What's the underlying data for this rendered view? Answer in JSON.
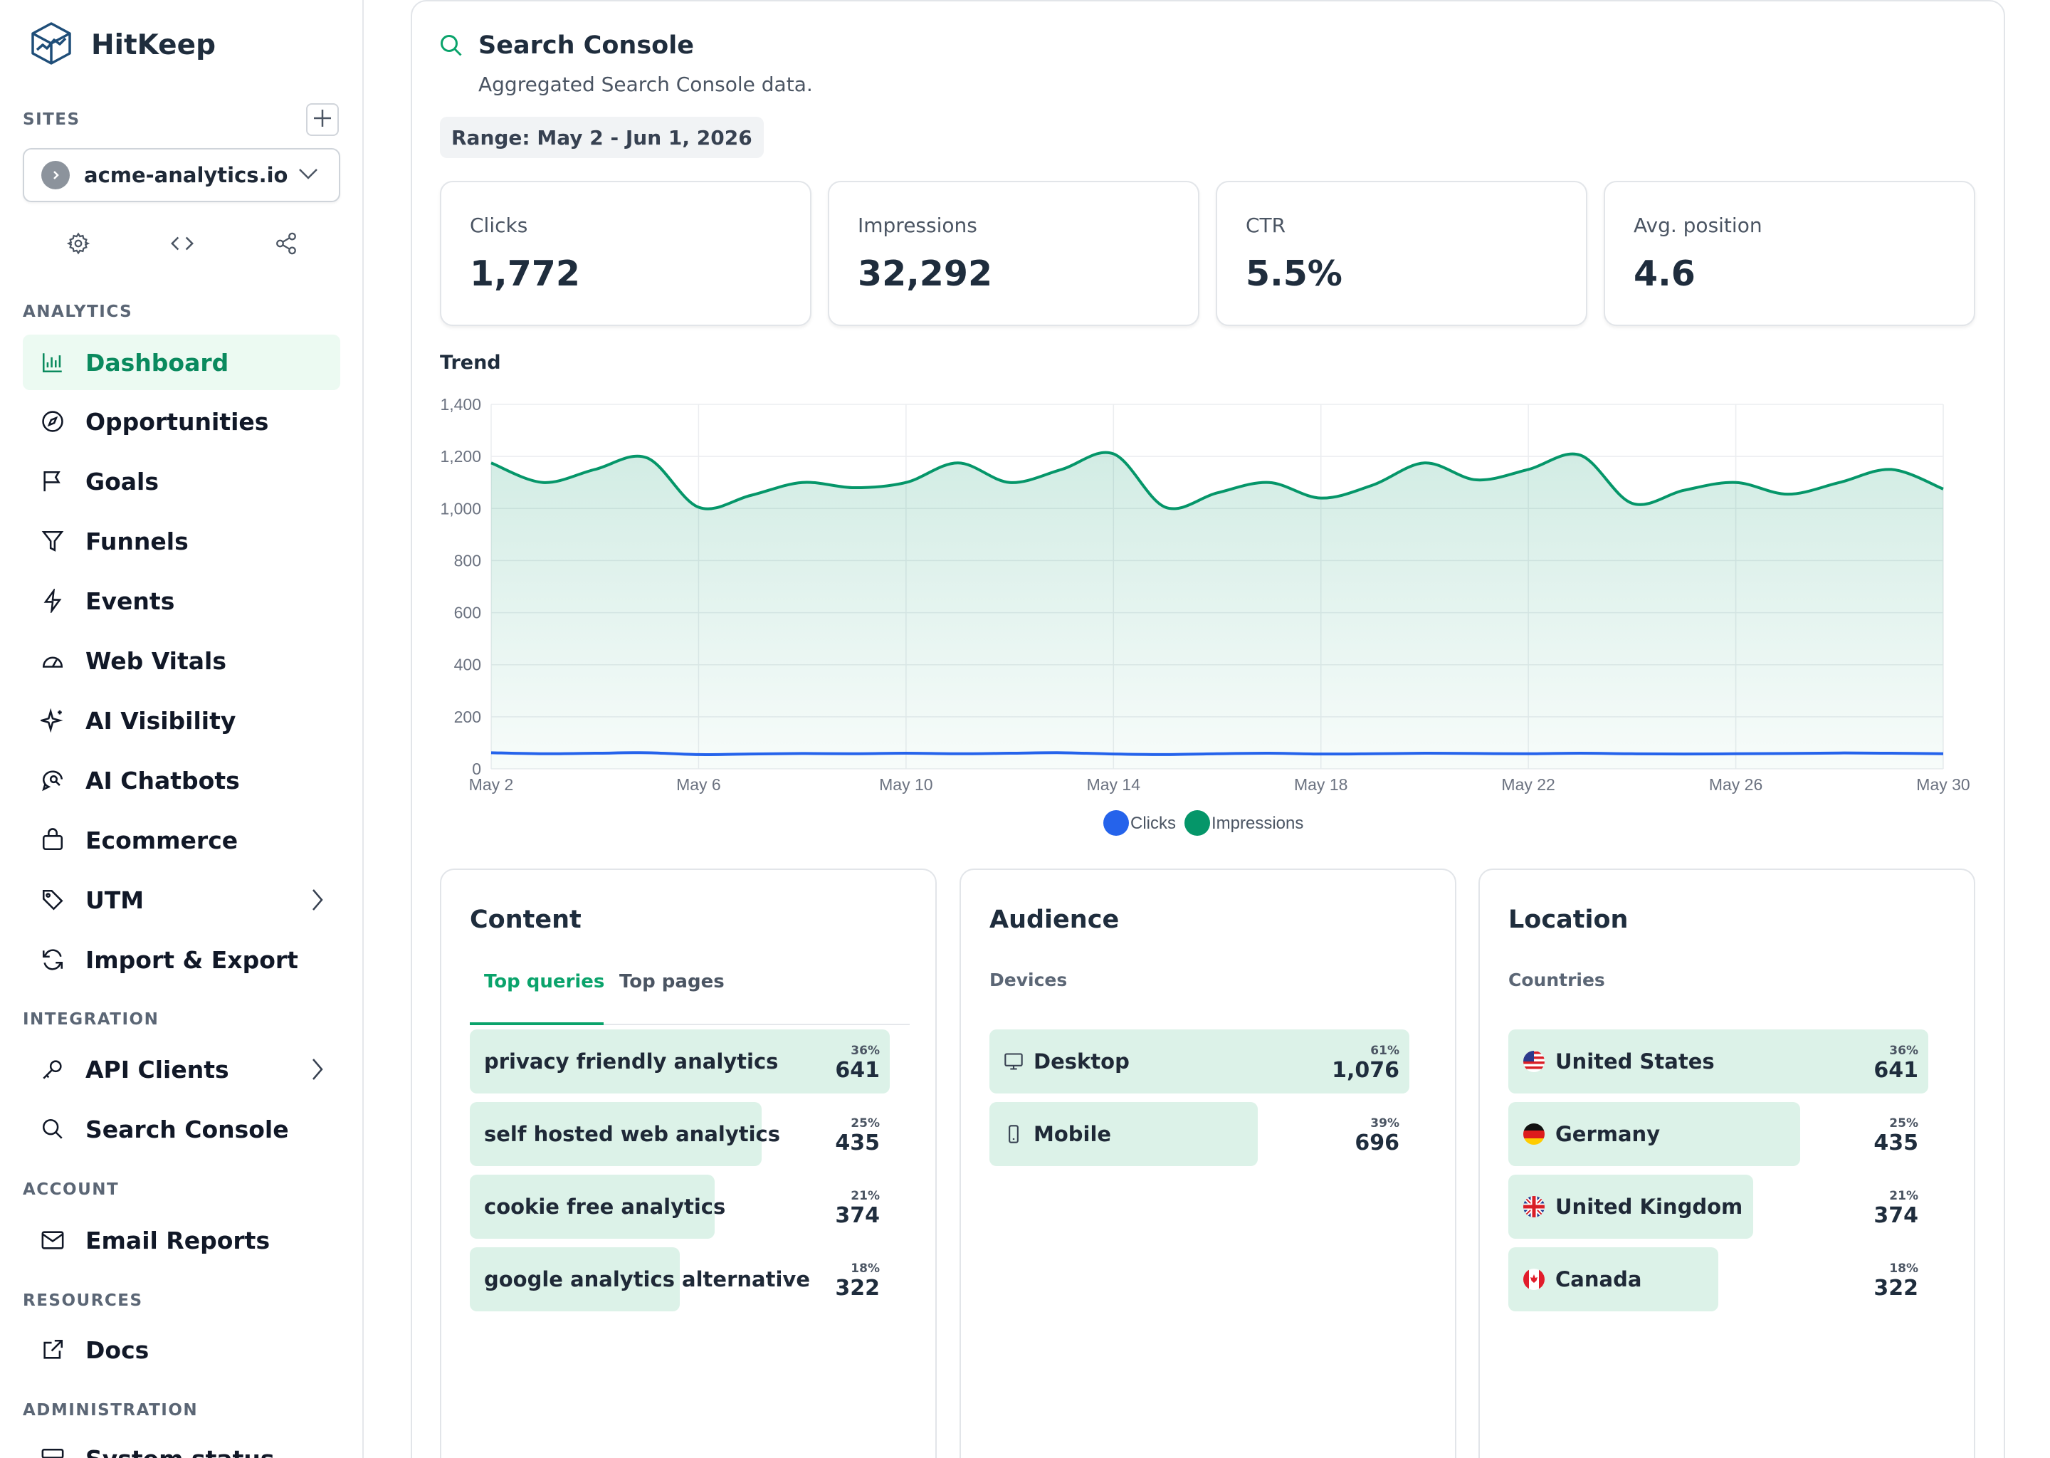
{
  "app": {
    "name": "HitKeep"
  },
  "sidebar": {
    "sites_label": "SITES",
    "site": "acme-analytics.io",
    "sections": {
      "analytics": "ANALYTICS",
      "integration": "INTEGRATION",
      "account": "ACCOUNT",
      "resources": "RESOURCES",
      "administration": "ADMINISTRATION"
    },
    "analytics_items": [
      {
        "label": "Dashboard",
        "icon": "chart-bar-icon"
      },
      {
        "label": "Opportunities",
        "icon": "compass-icon"
      },
      {
        "label": "Goals",
        "icon": "flag-icon"
      },
      {
        "label": "Funnels",
        "icon": "filter-icon"
      },
      {
        "label": "Events",
        "icon": "bolt-icon"
      },
      {
        "label": "Web Vitals",
        "icon": "gauge-icon"
      },
      {
        "label": "AI Visibility",
        "icon": "sparkles-icon"
      },
      {
        "label": "AI Chatbots",
        "icon": "chat-search-icon"
      },
      {
        "label": "Ecommerce",
        "icon": "shopping-bag-icon"
      },
      {
        "label": "UTM",
        "icon": "tag-icon"
      },
      {
        "label": "Import & Export",
        "icon": "sync-icon"
      }
    ],
    "integration_items": [
      {
        "label": "API Clients",
        "icon": "key-icon"
      },
      {
        "label": "Search Console",
        "icon": "search-icon"
      }
    ],
    "account_items": [
      {
        "label": "Email Reports",
        "icon": "mail-icon"
      }
    ],
    "resources_items": [
      {
        "label": "Docs",
        "icon": "external-link-icon"
      }
    ],
    "administration_items": [
      {
        "label": "System status",
        "icon": "server-icon"
      }
    ]
  },
  "page": {
    "title": "Search Console",
    "subtitle": "Aggregated Search Console data.",
    "range": "Range: May 2 - Jun 1, 2026"
  },
  "stats": [
    {
      "label": "Clicks",
      "value": "1,772"
    },
    {
      "label": "Impressions",
      "value": "32,292"
    },
    {
      "label": "CTR",
      "value": "5.5%"
    },
    {
      "label": "Avg. position",
      "value": "4.6"
    }
  ],
  "trend": {
    "title": "Trend"
  },
  "chart_data": {
    "type": "line",
    "x": [
      "May 2",
      "May 3",
      "May 4",
      "May 5",
      "May 6",
      "May 7",
      "May 8",
      "May 9",
      "May 10",
      "May 11",
      "May 12",
      "May 13",
      "May 14",
      "May 15",
      "May 16",
      "May 17",
      "May 18",
      "May 19",
      "May 20",
      "May 21",
      "May 22",
      "May 23",
      "May 24",
      "May 25",
      "May 26",
      "May 27",
      "May 28",
      "May 29",
      "May 30"
    ],
    "x_ticks": [
      "May 2",
      "May 6",
      "May 10",
      "May 14",
      "May 18",
      "May 22",
      "May 26",
      "May 30"
    ],
    "y_ticks": [
      "0",
      "200",
      "400",
      "600",
      "800",
      "1,000",
      "1,200",
      "1,400"
    ],
    "ylim": [
      0,
      1400
    ],
    "series": [
      {
        "name": "Clicks",
        "color": "#2563eb",
        "values": [
          62,
          58,
          60,
          62,
          55,
          57,
          59,
          58,
          60,
          58,
          60,
          62,
          57,
          55,
          58,
          60,
          57,
          58,
          60,
          59,
          58,
          60,
          58,
          57,
          58,
          59,
          61,
          60,
          58
        ]
      },
      {
        "name": "Impressions",
        "color": "#059669",
        "fill": true,
        "values": [
          1175,
          1100,
          1150,
          1195,
          1005,
          1050,
          1100,
          1080,
          1100,
          1175,
          1100,
          1150,
          1210,
          1005,
          1060,
          1100,
          1040,
          1090,
          1175,
          1110,
          1150,
          1205,
          1020,
          1070,
          1100,
          1055,
          1100,
          1150,
          1075
        ]
      }
    ],
    "grid": true,
    "legend": "bottom-center"
  },
  "panels": {
    "content": {
      "title": "Content",
      "tabs": [
        "Top queries",
        "Top pages"
      ],
      "rows": [
        {
          "label": "privacy friendly analytics",
          "pct": "36%",
          "value": "641",
          "share": 0.36
        },
        {
          "label": "self hosted web analytics",
          "pct": "25%",
          "value": "435",
          "share": 0.25
        },
        {
          "label": "cookie free analytics",
          "pct": "21%",
          "value": "374",
          "share": 0.21
        },
        {
          "label": "google analytics alternative",
          "pct": "18%",
          "value": "322",
          "share": 0.18
        }
      ]
    },
    "audience": {
      "title": "Audience",
      "subtitle": "Devices",
      "rows": [
        {
          "label": "Desktop",
          "pct": "61%",
          "value": "1,076",
          "share": 0.61,
          "icon": "monitor-icon"
        },
        {
          "label": "Mobile",
          "pct": "39%",
          "value": "696",
          "share": 0.39,
          "icon": "phone-icon"
        }
      ]
    },
    "location": {
      "title": "Location",
      "subtitle": "Countries",
      "rows": [
        {
          "label": "United States",
          "pct": "36%",
          "value": "641",
          "share": 0.36,
          "icon": "flag-us-icon"
        },
        {
          "label": "Germany",
          "pct": "25%",
          "value": "435",
          "share": 0.25,
          "icon": "flag-de-icon"
        },
        {
          "label": "United Kingdom",
          "pct": "21%",
          "value": "374",
          "share": 0.21,
          "icon": "flag-gb-icon"
        },
        {
          "label": "Canada",
          "pct": "18%",
          "value": "322",
          "share": 0.18,
          "icon": "flag-ca-icon"
        }
      ]
    }
  },
  "colors": {
    "accent": "#0aa36b",
    "active_bg": "#ecfaf2",
    "bar": "#dcf2e8"
  }
}
